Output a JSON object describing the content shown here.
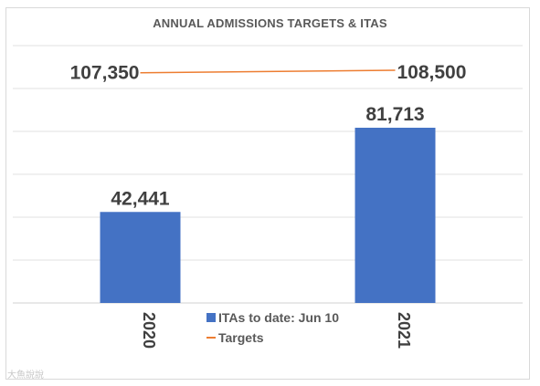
{
  "chart_data": {
    "type": "bar",
    "title": "ANNUAL ADMISSIONS TARGETS & ITAS",
    "categories": [
      "2020",
      "2021"
    ],
    "series": [
      {
        "name": "ITAs to date: Jun 10",
        "type": "bar",
        "values": [
          42441,
          81713
        ],
        "labels": [
          "42,441",
          "81,713"
        ],
        "color": "#4472c4"
      },
      {
        "name": "Targets",
        "type": "line",
        "values": [
          107350,
          108500
        ],
        "labels": [
          "107,350",
          "108,500"
        ],
        "color": "#ed7d31"
      }
    ],
    "ylim": [
      0,
      120000
    ],
    "grid": true,
    "legend": "bottom-center"
  },
  "watermark": "大魚說說"
}
